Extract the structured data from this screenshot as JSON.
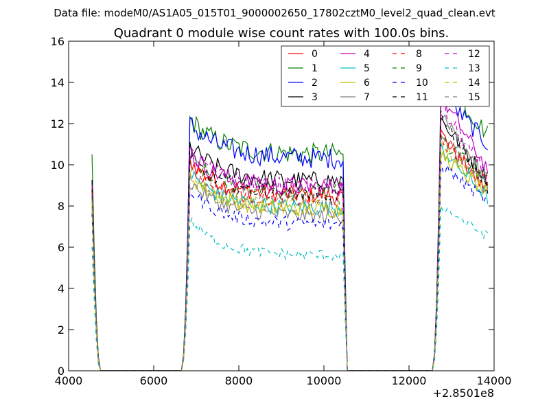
{
  "suptitle": "Data file: modeM0/AS1A05_015T01_9000002650_17802cztM0_level2_quad_clean.evt",
  "chart_data": {
    "type": "line",
    "title": "Quadrant 0 module wise count rates with 100.0s bins.",
    "xlabel": "",
    "ylabel": "",
    "x_offset_label": "+2.8501e8",
    "xlim": [
      4000,
      14000
    ],
    "ylim": [
      0,
      16
    ],
    "xticks": [
      4000,
      6000,
      8000,
      10000,
      12000,
      14000
    ],
    "yticks": [
      0,
      2,
      4,
      6,
      8,
      10,
      12,
      14,
      16
    ],
    "grid": false,
    "legend_position": "top-right",
    "segments": [
      {
        "start": 4550,
        "end": 4750,
        "type": "decay"
      },
      {
        "start": 4750,
        "end": 6650,
        "type": "zero"
      },
      {
        "start": 6650,
        "end": 6850,
        "type": "rise"
      },
      {
        "start": 6850,
        "end": 10450,
        "type": "plateau"
      },
      {
        "start": 10450,
        "end": 10550,
        "type": "fall"
      },
      {
        "start": 10550,
        "end": 12550,
        "type": "zero"
      },
      {
        "start": 12550,
        "end": 12750,
        "type": "rise"
      },
      {
        "start": 12750,
        "end": 13850,
        "type": "plateau2"
      }
    ],
    "series": [
      {
        "name": "0",
        "color": "#ff0000",
        "dash": "solid",
        "start": 9.2,
        "level": 8.5,
        "peak2": 11.5,
        "end2": 8.6
      },
      {
        "name": "1",
        "color": "#008000",
        "dash": "solid",
        "start": 10.5,
        "level": 10.5,
        "peak2": 14.2,
        "end2": 11.5
      },
      {
        "name": "2",
        "color": "#0000ff",
        "dash": "solid",
        "start": 9.3,
        "level": 10.3,
        "peak2": 13.5,
        "end2": 11.0
      },
      {
        "name": "3",
        "color": "#000000",
        "dash": "solid",
        "start": 9.3,
        "level": 9.2,
        "peak2": 12.2,
        "end2": 9.3
      },
      {
        "name": "4",
        "color": "#bf00bf",
        "dash": "solid",
        "start": 9.0,
        "level": 8.9,
        "peak2": 13.3,
        "end2": 9.8
      },
      {
        "name": "5",
        "color": "#00bfbf",
        "dash": "solid",
        "start": 8.2,
        "level": 7.9,
        "peak2": 10.8,
        "end2": 8.4
      },
      {
        "name": "6",
        "color": "#bfbf00",
        "dash": "solid",
        "start": 8.0,
        "level": 7.8,
        "peak2": 10.5,
        "end2": 8.6
      },
      {
        "name": "7",
        "color": "#808080",
        "dash": "solid",
        "start": 8.6,
        "level": 7.5,
        "peak2": 12.6,
        "end2": 9.1
      },
      {
        "name": "8",
        "color": "#ff0000",
        "dash": "dashed",
        "start": 8.7,
        "level": 8.3,
        "peak2": 11.3,
        "end2": 9.2
      },
      {
        "name": "9",
        "color": "#008000",
        "dash": "dashed",
        "start": 8.5,
        "level": 8.7,
        "peak2": 11.2,
        "end2": 9.2
      },
      {
        "name": "10",
        "color": "#0000ff",
        "dash": "dashed",
        "start": 7.6,
        "level": 7.1,
        "peak2": 10.0,
        "end2": 8.2
      },
      {
        "name": "11",
        "color": "#000000",
        "dash": "dashed",
        "start": 8.8,
        "level": 8.6,
        "peak2": 12.3,
        "end2": 8.9
      },
      {
        "name": "12",
        "color": "#bf00bf",
        "dash": "dashed",
        "start": 9.0,
        "level": 8.9,
        "peak2": 12.8,
        "end2": 9.4
      },
      {
        "name": "13",
        "color": "#00bfbf",
        "dash": "dashed",
        "start": 6.1,
        "level": 5.6,
        "peak2": 8.0,
        "end2": 6.5
      },
      {
        "name": "14",
        "color": "#bfbf00",
        "dash": "dashed",
        "start": 8.2,
        "level": 7.9,
        "peak2": 11.0,
        "end2": 8.7
      },
      {
        "name": "15",
        "color": "#808080",
        "dash": "dashed",
        "start": 8.4,
        "level": 8.1,
        "peak2": 11.4,
        "end2": 8.8
      }
    ]
  }
}
